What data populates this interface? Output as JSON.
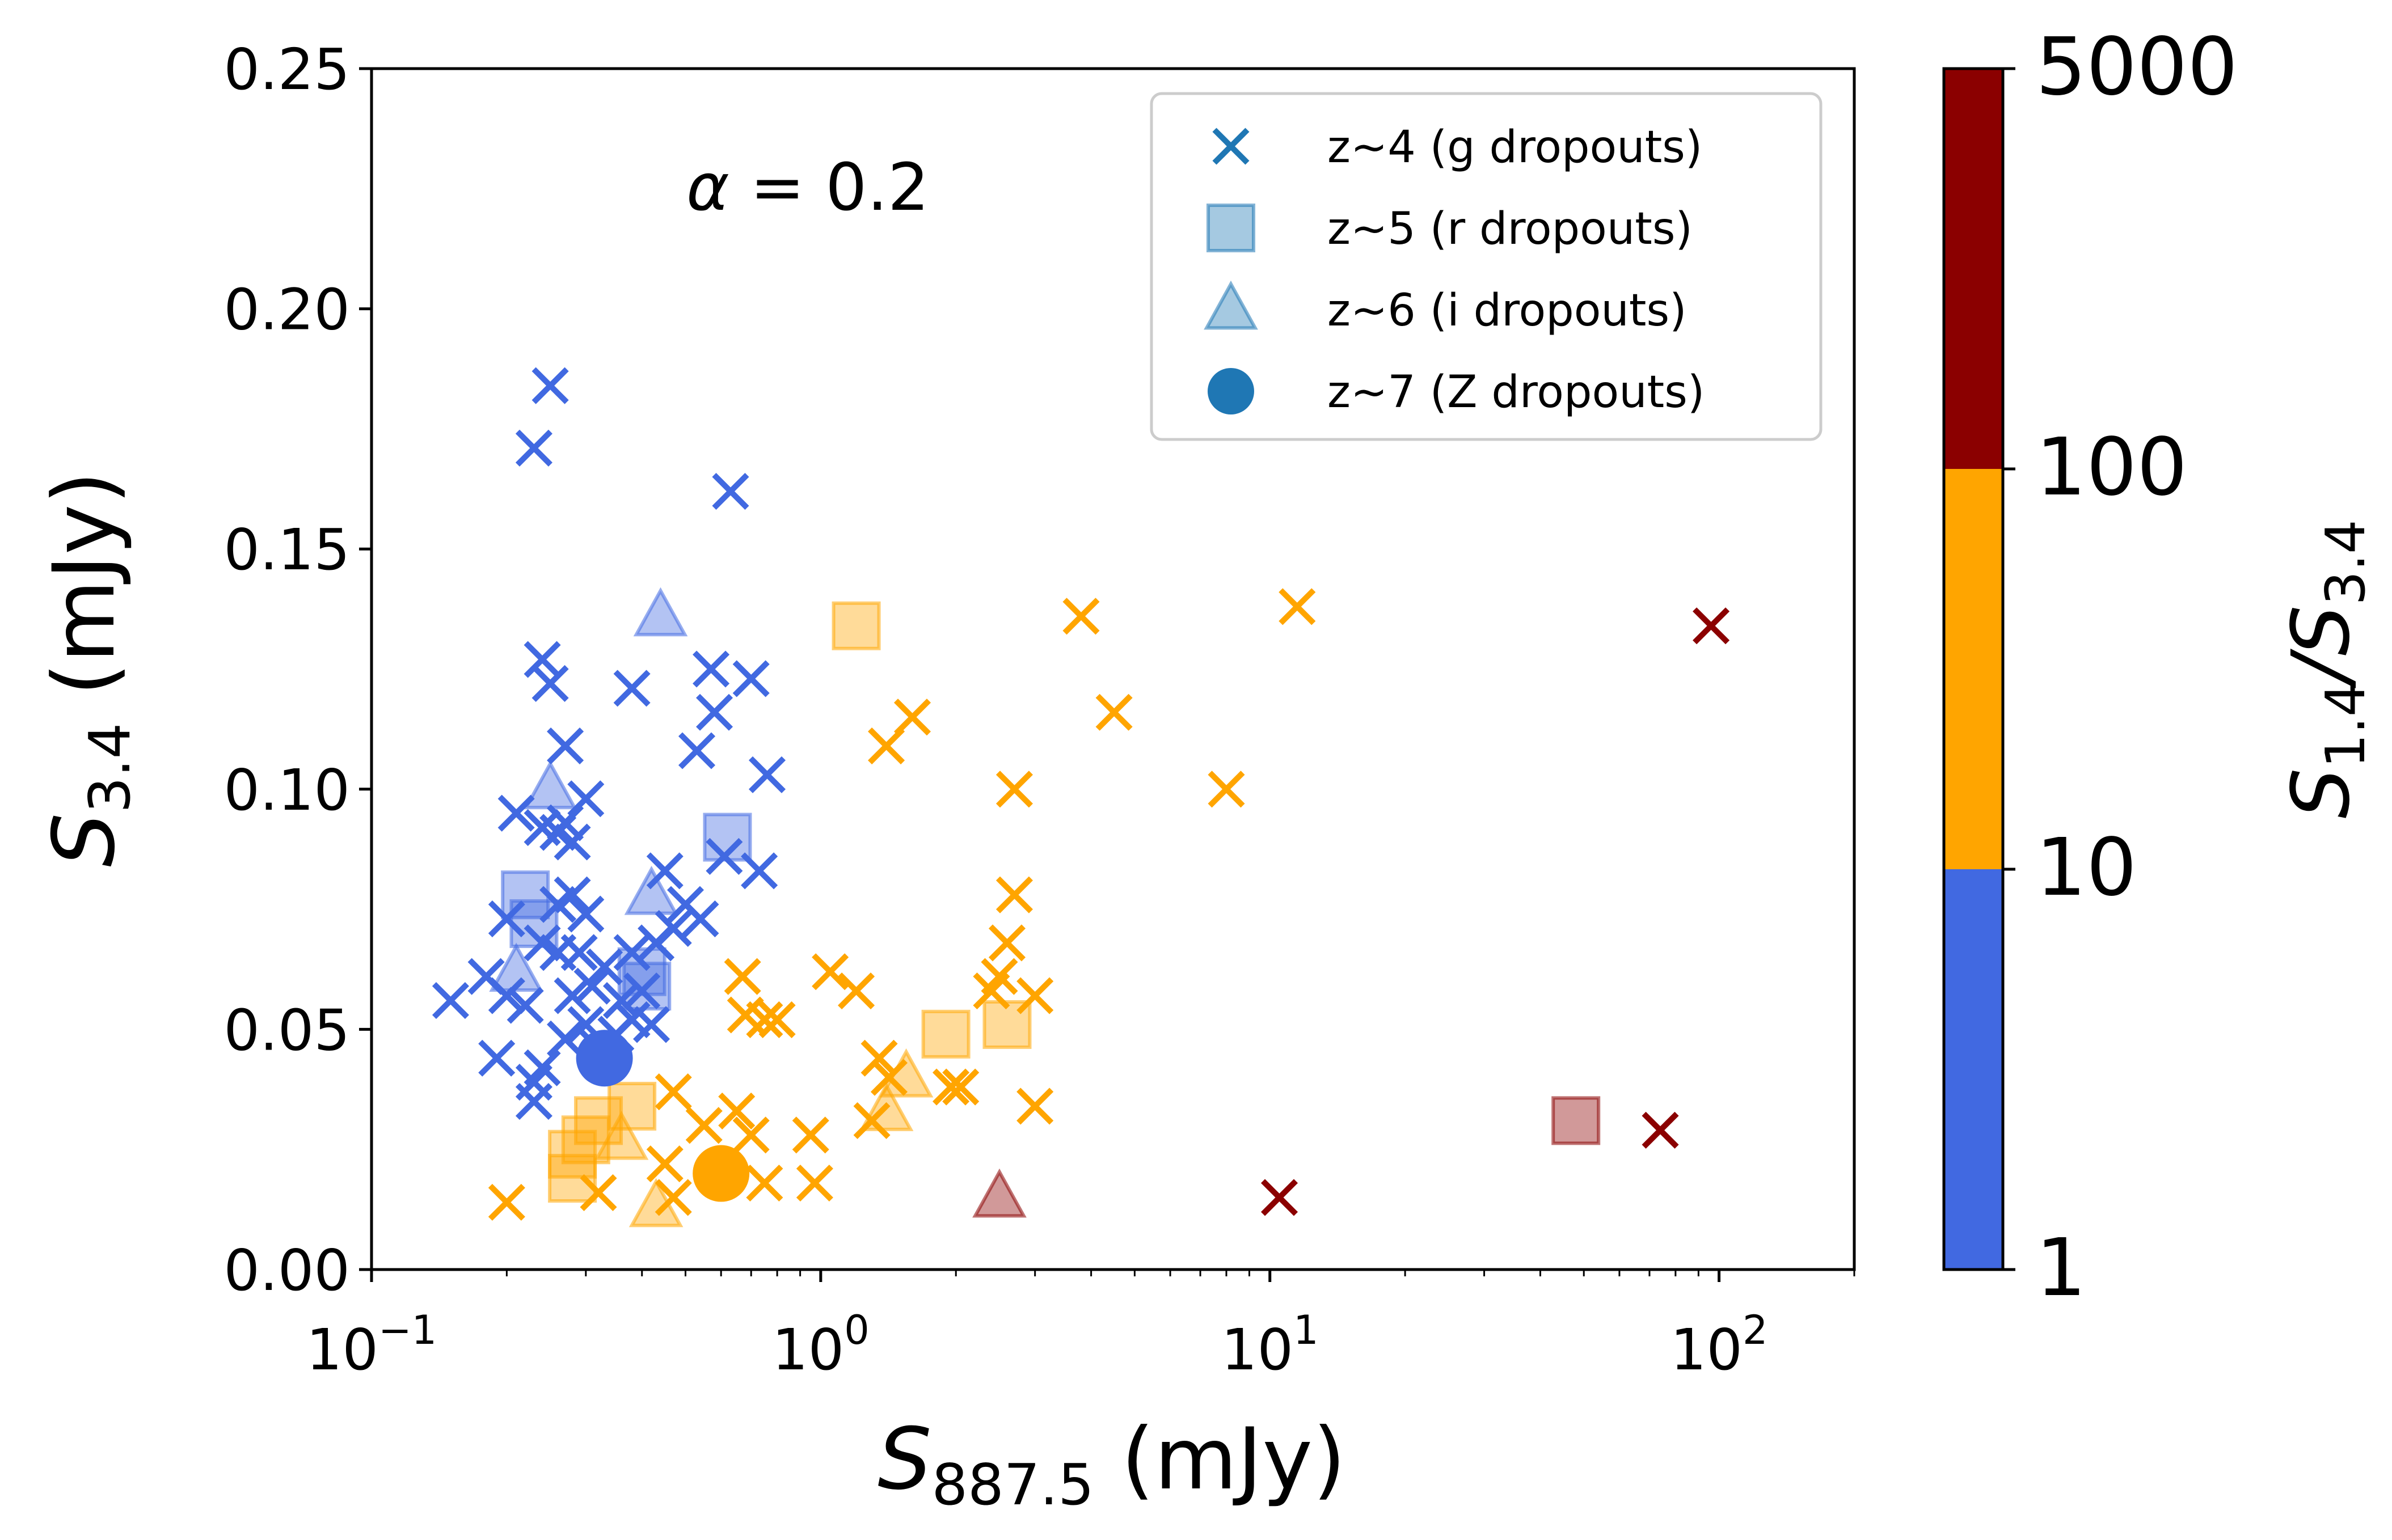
{
  "chart_data": {
    "type": "scatter",
    "xscale": "log",
    "xlim": [
      0.1,
      200
    ],
    "ylim": [
      0,
      0.25
    ],
    "xlabel": {
      "main": "S",
      "sub": "887.5",
      "unit": " (mJy)"
    },
    "ylabel": {
      "main": "S",
      "sub": "3.4",
      "unit": " (mJy)"
    },
    "x_ticks": [
      {
        "value": 0.1,
        "base": "10",
        "exp": "−1"
      },
      {
        "value": 1,
        "base": "10",
        "exp": "0"
      },
      {
        "value": 10,
        "base": "10",
        "exp": "1"
      },
      {
        "value": 100,
        "base": "10",
        "exp": "2"
      }
    ],
    "y_ticks": [
      {
        "value": 0,
        "label": "0.00"
      },
      {
        "value": 0.05,
        "label": "0.05"
      },
      {
        "value": 0.1,
        "label": "0.10"
      },
      {
        "value": 0.15,
        "label": "0.15"
      },
      {
        "value": 0.2,
        "label": "0.20"
      },
      {
        "value": 0.25,
        "label": "0.25"
      }
    ],
    "annotation": {
      "symbol": "α",
      "text": " = 0.2"
    },
    "colors": {
      "blue": "#4169E1",
      "orange": "#FFA500",
      "darkred": "#8B0000",
      "legend": "#1f77b4"
    },
    "colorbar": {
      "title": {
        "main": "S",
        "sub1": "1.4",
        "slash": "/S",
        "sub2": "3.4"
      },
      "bins": [
        {
          "from": "1",
          "to": "10",
          "color": "#4169E1"
        },
        {
          "from": "10",
          "to": "100",
          "color": "#FFA500"
        },
        {
          "from": "100",
          "to": "5000",
          "color": "#8B0000"
        }
      ],
      "tick_labels": [
        "1",
        "10",
        "100",
        "5000"
      ]
    },
    "legend": [
      {
        "marker": "x",
        "label": "z~4 (g dropouts)"
      },
      {
        "marker": "square",
        "label": "z~5 (r dropouts)"
      },
      {
        "marker": "triangle",
        "label": "z~6 (i dropouts)"
      },
      {
        "marker": "circle",
        "label": "z~7 (Z dropouts)"
      }
    ],
    "series": [
      {
        "name": "z~4 (g dropouts)",
        "marker": "x",
        "points": [
          [
            0.25,
            0.184,
            "blue"
          ],
          [
            0.23,
            0.171,
            "blue"
          ],
          [
            0.63,
            0.162,
            "blue"
          ],
          [
            0.24,
            0.127,
            "blue"
          ],
          [
            0.25,
            0.122,
            "blue"
          ],
          [
            0.38,
            0.121,
            "blue"
          ],
          [
            0.57,
            0.125,
            "blue"
          ],
          [
            0.7,
            0.123,
            "blue"
          ],
          [
            0.58,
            0.116,
            "blue"
          ],
          [
            0.53,
            0.108,
            "blue"
          ],
          [
            0.27,
            0.109,
            "blue"
          ],
          [
            0.76,
            0.103,
            "blue"
          ],
          [
            0.3,
            0.098,
            "blue"
          ],
          [
            0.21,
            0.095,
            "blue"
          ],
          [
            0.24,
            0.092,
            "blue"
          ],
          [
            0.26,
            0.091,
            "blue"
          ],
          [
            0.28,
            0.089,
            "blue"
          ],
          [
            0.27,
            0.093,
            "blue"
          ],
          [
            0.61,
            0.086,
            "blue"
          ],
          [
            0.45,
            0.083,
            "blue"
          ],
          [
            0.73,
            0.083,
            "blue"
          ],
          [
            0.28,
            0.078,
            "blue"
          ],
          [
            0.2,
            0.073,
            "blue"
          ],
          [
            0.26,
            0.076,
            "blue"
          ],
          [
            0.3,
            0.074,
            "blue"
          ],
          [
            0.5,
            0.076,
            "blue"
          ],
          [
            0.54,
            0.073,
            "blue"
          ],
          [
            0.24,
            0.068,
            "blue"
          ],
          [
            0.26,
            0.066,
            "blue"
          ],
          [
            0.29,
            0.066,
            "blue"
          ],
          [
            0.33,
            0.063,
            "blue"
          ],
          [
            0.38,
            0.066,
            "blue"
          ],
          [
            0.43,
            0.068,
            "blue"
          ],
          [
            0.47,
            0.071,
            "blue"
          ],
          [
            0.18,
            0.061,
            "blue"
          ],
          [
            0.2,
            0.057,
            "blue"
          ],
          [
            0.15,
            0.056,
            "blue"
          ],
          [
            0.22,
            0.055,
            "blue"
          ],
          [
            0.28,
            0.057,
            "blue"
          ],
          [
            0.31,
            0.059,
            "blue"
          ],
          [
            0.36,
            0.056,
            "blue"
          ],
          [
            0.4,
            0.058,
            "blue"
          ],
          [
            0.3,
            0.051,
            "blue"
          ],
          [
            0.35,
            0.049,
            "blue"
          ],
          [
            0.38,
            0.052,
            "blue"
          ],
          [
            0.42,
            0.051,
            "blue"
          ],
          [
            0.19,
            0.044,
            "blue"
          ],
          [
            0.24,
            0.042,
            "blue"
          ],
          [
            0.27,
            0.048,
            "blue"
          ],
          [
            0.32,
            0.046,
            "blue"
          ],
          [
            0.23,
            0.039,
            "blue"
          ],
          [
            0.23,
            0.035,
            "blue"
          ],
          [
            1.6,
            0.115,
            "orange"
          ],
          [
            1.4,
            0.109,
            "orange"
          ],
          [
            3.8,
            0.136,
            "orange"
          ],
          [
            4.5,
            0.116,
            "orange"
          ],
          [
            11.5,
            0.138,
            "orange"
          ],
          [
            8,
            0.1,
            "orange"
          ],
          [
            2.7,
            0.1,
            "orange"
          ],
          [
            2.7,
            0.078,
            "orange"
          ],
          [
            2.6,
            0.068,
            "orange"
          ],
          [
            2.5,
            0.061,
            "orange"
          ],
          [
            2.4,
            0.058,
            "orange"
          ],
          [
            3,
            0.057,
            "orange"
          ],
          [
            0.67,
            0.061,
            "orange"
          ],
          [
            1.05,
            0.062,
            "orange"
          ],
          [
            1.2,
            0.058,
            "orange"
          ],
          [
            0.68,
            0.053,
            "orange"
          ],
          [
            0.75,
            0.052,
            "orange"
          ],
          [
            0.8,
            0.052,
            "orange"
          ],
          [
            1.35,
            0.044,
            "orange"
          ],
          [
            1.42,
            0.04,
            "orange"
          ],
          [
            1.95,
            0.038,
            "orange"
          ],
          [
            2.05,
            0.038,
            "orange"
          ],
          [
            3,
            0.034,
            "orange"
          ],
          [
            0.47,
            0.037,
            "orange"
          ],
          [
            0.55,
            0.03,
            "orange"
          ],
          [
            0.65,
            0.033,
            "orange"
          ],
          [
            0.7,
            0.028,
            "orange"
          ],
          [
            0.95,
            0.028,
            "orange"
          ],
          [
            0.45,
            0.022,
            "orange"
          ],
          [
            0.75,
            0.018,
            "orange"
          ],
          [
            0.97,
            0.018,
            "orange"
          ],
          [
            0.32,
            0.016,
            "orange"
          ],
          [
            0.2,
            0.014,
            "orange"
          ],
          [
            0.47,
            0.015,
            "orange"
          ],
          [
            1.3,
            0.031,
            "orange"
          ],
          [
            96,
            0.134,
            "darkred"
          ],
          [
            74,
            0.029,
            "darkred"
          ],
          [
            10.5,
            0.015,
            "darkred"
          ]
        ]
      },
      {
        "name": "z~5 (r dropouts)",
        "marker": "square",
        "points": [
          [
            1.2,
            0.134,
            "orange"
          ],
          [
            2.6,
            0.051,
            "orange"
          ],
          [
            1.9,
            0.049,
            "orange"
          ],
          [
            0.62,
            0.09,
            "blue"
          ],
          [
            0.22,
            0.078,
            "blue"
          ],
          [
            0.23,
            0.072,
            "blue"
          ],
          [
            0.4,
            0.062,
            "blue"
          ],
          [
            0.41,
            0.059,
            "blue"
          ],
          [
            0.38,
            0.034,
            "orange"
          ],
          [
            0.32,
            0.031,
            "orange"
          ],
          [
            0.3,
            0.027,
            "orange"
          ],
          [
            0.28,
            0.024,
            "orange"
          ],
          [
            0.28,
            0.019,
            "orange"
          ],
          [
            48,
            0.031,
            "darkred"
          ]
        ]
      },
      {
        "name": "z~6 (i dropouts)",
        "marker": "triangle",
        "points": [
          [
            0.44,
            0.136,
            "blue"
          ],
          [
            0.25,
            0.1,
            "blue"
          ],
          [
            0.42,
            0.078,
            "blue"
          ],
          [
            0.21,
            0.062,
            "blue"
          ],
          [
            1.55,
            0.04,
            "orange"
          ],
          [
            1.4,
            0.033,
            "orange"
          ],
          [
            0.36,
            0.027,
            "orange"
          ],
          [
            0.43,
            0.013,
            "orange"
          ],
          [
            2.5,
            0.015,
            "darkred"
          ]
        ]
      },
      {
        "name": "z~7 (Z dropouts)",
        "marker": "circle",
        "points": [
          [
            0.33,
            0.044,
            "blue"
          ],
          [
            0.6,
            0.02,
            "orange"
          ]
        ]
      }
    ]
  }
}
